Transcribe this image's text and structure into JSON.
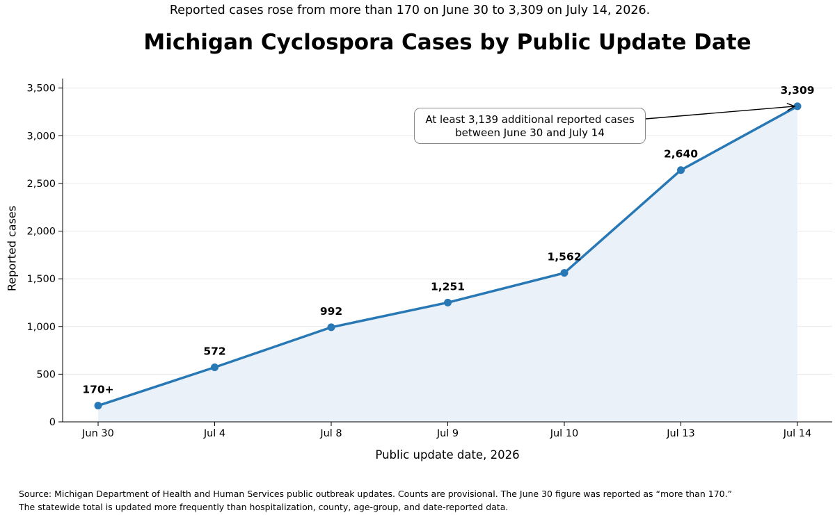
{
  "subtitle": "Reported cases rose from more than 170 on June 30 to 3,309 on July 14, 2026.",
  "footer": {
    "line1": "Source: Michigan Department of Health and Human Services public outbreak updates. Counts are provisional. The June 30 figure was reported as “more than 170.”",
    "line2": "The statewide total is updated more frequently than hospitalization, county, age-group, and date-reported data."
  },
  "colors": {
    "line": "#2878b5",
    "fill": "#eaf1f9",
    "grid": "#e8e8e8"
  },
  "chart_data": {
    "type": "line",
    "title": "Michigan Cyclospora Cases by Public Update Date",
    "xlabel": "Public update date, 2026",
    "ylabel": "Reported cases",
    "categories": [
      "Jun 30",
      "Jul 4",
      "Jul 8",
      "Jul 9",
      "Jul 10",
      "Jul 13",
      "Jul 14"
    ],
    "values": [
      170,
      572,
      992,
      1251,
      1562,
      2640,
      3309
    ],
    "data_labels": [
      "170+",
      "572",
      "992",
      "1,251",
      "1,562",
      "2,640",
      "3,309"
    ],
    "ylim": [
      0,
      3600
    ],
    "yticks": [
      0,
      500,
      1000,
      1500,
      2000,
      2500,
      3000,
      3500
    ],
    "ytick_labels": [
      "0",
      "500",
      "1,000",
      "1,500",
      "2,000",
      "2,500",
      "3,000",
      "3,500"
    ],
    "grid": "horizontal",
    "area_fill": true,
    "annotation": {
      "line1": "At least 3,139 additional reported cases",
      "line2": "between June 30 and July 14",
      "target_index": 6
    }
  }
}
